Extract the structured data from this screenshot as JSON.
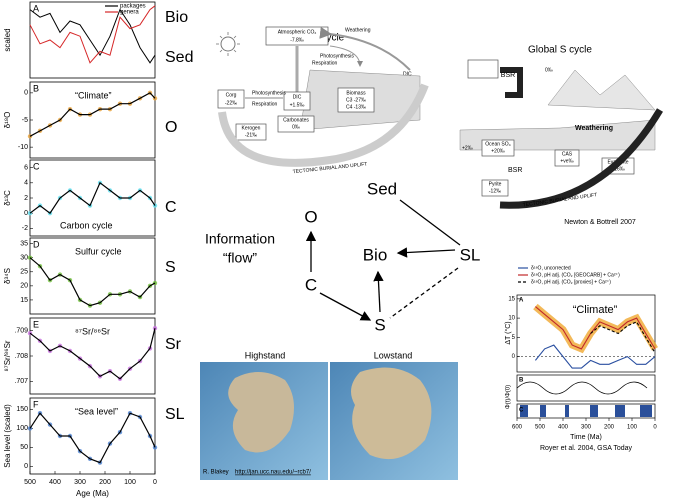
{
  "time_series": {
    "x": [
      500,
      460,
      420,
      380,
      340,
      300,
      260,
      220,
      180,
      140,
      100,
      60,
      20,
      0
    ],
    "xlim": [
      500,
      0
    ],
    "xticks": [
      500,
      400,
      300,
      200,
      100,
      0
    ],
    "xlabel": "Age (Ma)",
    "panels": [
      {
        "letter": "A",
        "ylabel": "scaled",
        "ylim": [
          0,
          1
        ],
        "series": [
          {
            "name": "packages",
            "color": "#000000",
            "values": [
              0.9,
              0.8,
              0.85,
              0.6,
              0.75,
              0.7,
              0.5,
              0.3,
              0.55,
              0.9,
              0.7,
              0.4,
              0.2,
              0.3
            ]
          },
          {
            "name": "genera",
            "color": "#d62728",
            "values": [
              0.7,
              0.45,
              0.5,
              0.4,
              0.6,
              0.55,
              0.2,
              0.35,
              0.3,
              0.8,
              0.65,
              0.7,
              0.9,
              0.95
            ]
          }
        ]
      },
      {
        "letter": "B",
        "ylabel": "δ¹⁸O",
        "ylim": [
          -12,
          2
        ],
        "yticks": [
          0,
          -5,
          -10
        ],
        "annotation": "“Climate”",
        "color": "#e8a23a",
        "values": [
          -8,
          -7,
          -6,
          -5,
          -3,
          -4,
          -4,
          -3,
          -3,
          -2,
          -2,
          -1,
          0,
          -1
        ]
      },
      {
        "letter": "C",
        "ylabel": "δ¹³C",
        "ylim": [
          -3,
          7
        ],
        "yticks": [
          6,
          4,
          2,
          0,
          -2
        ],
        "annotation": "Carbon cycle",
        "color": "#5fe0f0",
        "values": [
          0,
          1,
          0,
          2,
          3,
          2,
          1,
          4,
          3,
          2,
          2,
          3,
          2,
          1
        ]
      },
      {
        "letter": "D",
        "ylabel": "δ³⁴S",
        "ylim": [
          10,
          37
        ],
        "yticks": [
          35,
          30,
          25,
          20,
          15
        ],
        "annotation": "Sulfur cycle",
        "color": "#6fbf3a",
        "values": [
          30,
          27,
          22,
          24,
          22,
          15,
          13,
          14,
          17,
          17,
          18,
          16,
          20,
          21
        ]
      },
      {
        "letter": "E",
        "ylabel": "⁸⁷Sr/⁸⁶Sr",
        "ylim": [
          0.7065,
          0.7095
        ],
        "yticks": [
          {
            "value": 0.709,
            "label": ".709"
          },
          {
            "value": 0.708,
            "label": ".708"
          },
          {
            "value": 0.707,
            "label": ".707"
          }
        ],
        "annotation": "⁸⁷Sr/⁸⁶Sr",
        "color": "#c870e0",
        "values": [
          0.7089,
          0.7086,
          0.7082,
          0.7084,
          0.7082,
          0.7079,
          0.7076,
          0.7072,
          0.7074,
          0.7071,
          0.7075,
          0.7078,
          0.7083,
          0.7091
        ]
      },
      {
        "letter": "F",
        "ylabel": "Sea level (scaled)",
        "ylim": [
          -20,
          180
        ],
        "yticks": [
          150,
          100,
          50,
          0
        ],
        "annotation": "“Sea level”",
        "color": "#4a7fd0",
        "values": [
          100,
          140,
          110,
          80,
          80,
          40,
          20,
          10,
          60,
          90,
          140,
          130,
          80,
          50
        ]
      }
    ]
  },
  "proxy_labels": [
    {
      "text": "Bio",
      "color": "#e03c28"
    },
    {
      "text": "Sed",
      "color": "#000000"
    },
    {
      "text": "O",
      "color": "#e8a23a"
    },
    {
      "text": "C",
      "color": "#5fc8f0"
    },
    {
      "text": "S",
      "color": "#6fbf3a"
    },
    {
      "text": "Sr",
      "color": "#c870e0"
    },
    {
      "text": "SL",
      "color": "#4a7fd0"
    }
  ],
  "c_cycle": {
    "title": "Global C cycle",
    "atm": "Atmospheric CO₂",
    "atm_value": "-7.8‰",
    "weathering": "Weathering",
    "photosynthesis": "Photosynthesis",
    "respiration": "Respiration",
    "dic": "DIC",
    "corg": "Corg",
    "corg_value": "-22‰",
    "dic_box": "DIC",
    "dic_value": "+1.5‰",
    "biomass": "Biomass",
    "c3": "C3 -27‰",
    "c4": "C4 -13‰",
    "carbonates": "Carbonates",
    "carbonates_value": "0‰",
    "kerogen": "Kerogen",
    "kerogen_value": "-21‰",
    "tectonic": "TECTONIC BURIAL AND UPLIFT"
  },
  "s_cycle": {
    "title": "Global S cycle",
    "bsr_top": "BSR",
    "zero": "0‰",
    "ocean": "Ocean SO₄",
    "ocean_value": "+20‰",
    "plus2": "+2‰",
    "bsr": "BSR",
    "cas": "CAS",
    "cas_value": "+ve‰",
    "evaporite": "Evaporite",
    "evaporite_value": "+16‰",
    "pyrite": "Pyrite",
    "pyrite_value": "-12‰",
    "weathering": "Weathering",
    "tectonic": "TECTONIC BURIAL AND UPLIFT",
    "citation": "Newton & Bottrell 2007"
  },
  "network": {
    "caption": [
      "Information",
      "“flow”"
    ],
    "nodes": [
      {
        "label": "Sed",
        "color": "#000000"
      },
      {
        "label": "O",
        "color": "#e8a23a"
      },
      {
        "label": "Bio",
        "color": "#e03c28"
      },
      {
        "label": "SL",
        "color": "#4a7fd0"
      },
      {
        "label": "C",
        "color": "#5fc8f0"
      },
      {
        "label": "S",
        "color": "#6fbf3a"
      }
    ]
  },
  "maps": {
    "left": "Highstand",
    "right": "Lowstand",
    "credit": "R. Blakey",
    "url": "http://jan.ucc.nau.edu/~rcb7/"
  },
  "royer": {
    "x": [
      520,
      480,
      440,
      400,
      360,
      320,
      280,
      240,
      200,
      160,
      120,
      80,
      40,
      0
    ],
    "xlim": [
      600,
      0
    ],
    "xticks": [
      600,
      500,
      400,
      300,
      200,
      100,
      0
    ],
    "xlabel": "Time (Ma)",
    "ylim": [
      -4,
      16
    ],
    "yticks": [
      0,
      5,
      10,
      15
    ],
    "ylabel": "ΔT (°C)",
    "ylabel2": "Φ(t)/Φ(0)",
    "annotation": "“Climate”",
    "panel_letters": [
      "A",
      "B",
      "C"
    ],
    "series": [
      {
        "name": "δ¹⁸O, uncorrected",
        "color": "#2a4fa0",
        "values": [
          -1,
          2,
          3,
          0,
          -3,
          -3,
          -1,
          -2,
          -2,
          -1,
          0,
          -2,
          -2,
          0
        ]
      },
      {
        "name": "δ¹⁸O, pH adj. (CO₂ [GEOCARB] + Ca²⁺)",
        "color": "#c0282a",
        "values": [
          13,
          11,
          9,
          7,
          3,
          2,
          6,
          9,
          8,
          7,
          9,
          10,
          6,
          2
        ]
      },
      {
        "name": "δ¹⁸O, pH adj. (CO₂ [proxies] + Ca²⁺)",
        "color": "#000000",
        "values": [
          null,
          null,
          null,
          null,
          null,
          null,
          6,
          8,
          7,
          6,
          8,
          9,
          5,
          1
        ]
      }
    ],
    "citation": "Royer et al. 2004, GSA Today"
  }
}
